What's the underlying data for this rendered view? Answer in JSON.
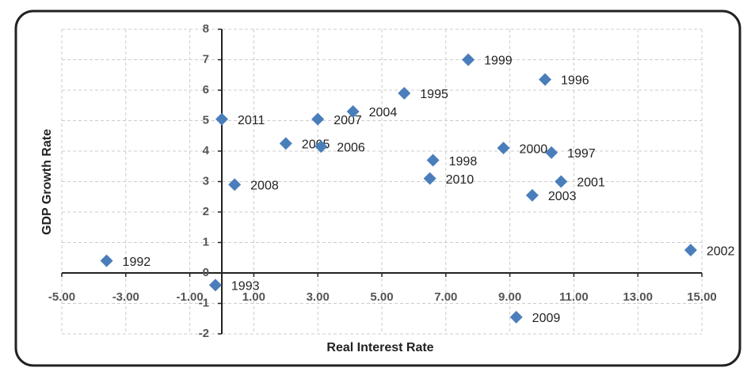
{
  "chart_data": {
    "type": "scatter",
    "xlabel": "Real Interest Rate",
    "ylabel": "GDP Growth Rate",
    "color": "#4a7ebb",
    "grid": true,
    "xlim": [
      -5,
      15
    ],
    "xticks": [
      {
        "value": -5,
        "label": "-5.00"
      },
      {
        "value": -3,
        "label": "-3.00"
      },
      {
        "value": -1,
        "label": "-1.00"
      },
      {
        "value": 1,
        "label": "1.00"
      },
      {
        "value": 3,
        "label": "3.00"
      },
      {
        "value": 5,
        "label": "5.00"
      },
      {
        "value": 7,
        "label": "7.00"
      },
      {
        "value": 9,
        "label": "9.00"
      },
      {
        "value": 11,
        "label": "11.00"
      },
      {
        "value": 13,
        "label": "13.00"
      },
      {
        "value": 15,
        "label": "15.00"
      }
    ],
    "ylim": [
      -2,
      8
    ],
    "yticks": [
      -2,
      -1,
      0,
      1,
      2,
      3,
      4,
      5,
      6,
      7,
      8
    ],
    "point_labels": [
      "1992",
      "1993",
      "2011",
      "2008",
      "2005",
      "2007",
      "2006",
      "2004",
      "1995",
      "1999",
      "1996",
      "1998",
      "2010",
      "2000",
      "1997",
      "2001",
      "2003",
      "2009",
      "2002"
    ],
    "x": [
      -3.6,
      -0.2,
      0.0,
      0.4,
      2.0,
      3.0,
      3.1,
      4.1,
      5.7,
      7.7,
      10.1,
      6.6,
      6.5,
      8.8,
      10.3,
      10.6,
      9.7,
      9.2,
      14.65
    ],
    "values": [
      0.4,
      -0.4,
      5.05,
      2.9,
      4.25,
      5.05,
      4.15,
      5.3,
      5.9,
      7.0,
      6.35,
      3.7,
      3.1,
      4.1,
      3.95,
      3.0,
      2.55,
      -1.45,
      0.75
    ]
  }
}
